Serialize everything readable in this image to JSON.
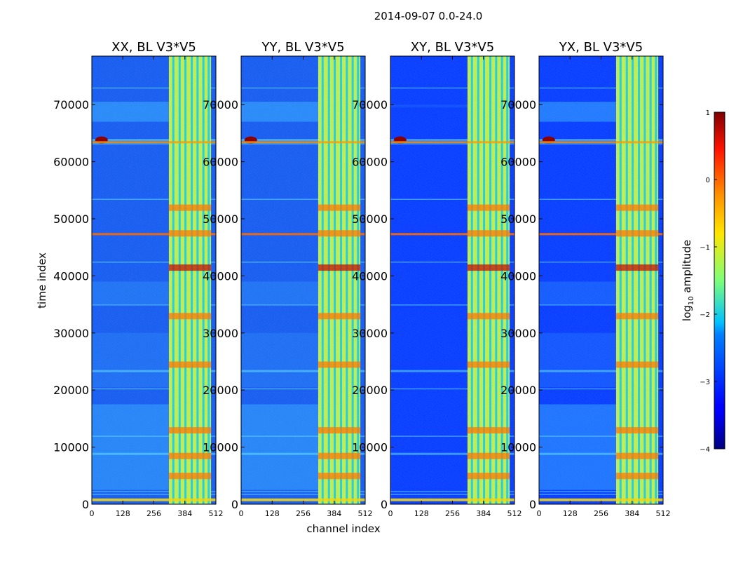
{
  "figure_title": "2014-09-07 0.0-24.0",
  "chart_data": {
    "type": "heatmap",
    "suptitle": "2014-09-07 0.0-24.0",
    "xlabel": "channel index",
    "ylabel": "time index",
    "xlim": [
      0,
      512
    ],
    "ylim": [
      0,
      78500
    ],
    "xticks": [
      0,
      128,
      256,
      384,
      512
    ],
    "yticks": [
      0,
      10000,
      20000,
      30000,
      40000,
      50000,
      60000,
      70000
    ],
    "panels": [
      {
        "title": "XX, BL V3*V5",
        "polarization": "XX"
      },
      {
        "title": "YY, BL V3*V5",
        "polarization": "YY"
      },
      {
        "title": "XY, BL V3*V5",
        "polarization": "XY"
      },
      {
        "title": "YX, BL V3*V5",
        "polarization": "YX"
      }
    ],
    "colorbar": {
      "label": "log10 amplitude",
      "label_base": "log",
      "label_sub": "10",
      "label_rest": " amplitude",
      "ticks": [
        1,
        0,
        -1,
        -2,
        -3,
        -4
      ],
      "tick_labels": [
        "1",
        "0",
        "−1",
        "−2",
        "−3",
        "−4"
      ],
      "range": [
        -4,
        1
      ],
      "colormap": "jet"
    }
  }
}
